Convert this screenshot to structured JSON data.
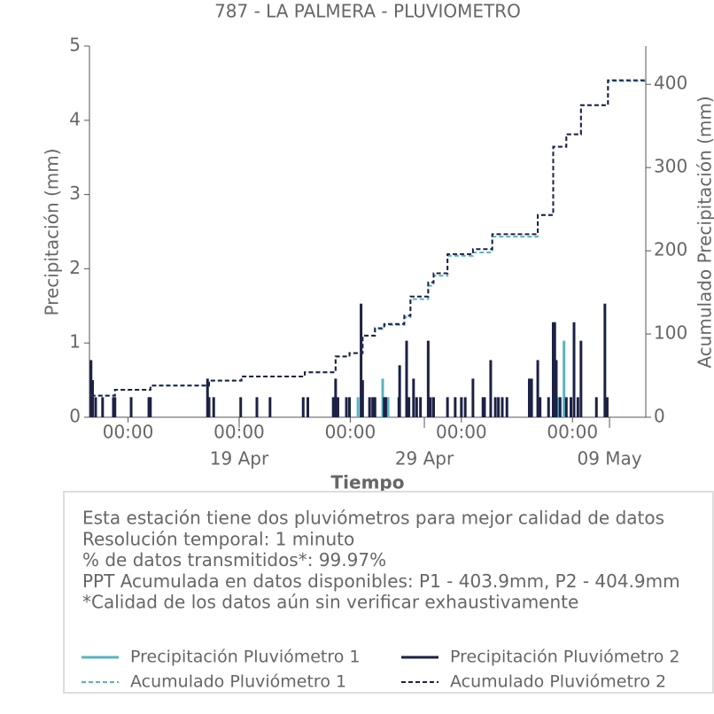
{
  "chart_data": {
    "type": "spike",
    "title": "787 - LA PALMERA - PLUVIOMETRO",
    "xlabel": "Tiempo",
    "ylabel": "Precipitación (mm)",
    "y2label": "Acumulado Precipitación (mm)",
    "xlim": [
      "04-10 22:00",
      "05-10 23:00"
    ],
    "xticks": [
      {
        "value": "04-13 00:00",
        "label": "00:00"
      },
      {
        "value": "04-19 00:00",
        "label": "00:00"
      },
      {
        "value": "04-25 00:00",
        "label": "00:00"
      },
      {
        "value": "05-01 00:00",
        "label": "00:00"
      },
      {
        "value": "05-07 00:00",
        "label": "00:00"
      }
    ],
    "xticks_major": [
      {
        "value": "04-19 00:00",
        "label": "19 Apr"
      },
      {
        "value": "04-29 00:00",
        "label": "29 Apr"
      },
      {
        "value": "05-09 00:00",
        "label": "09 May"
      }
    ],
    "ylim": [
      0,
      5
    ],
    "yticks": [
      0,
      1,
      2,
      3,
      4,
      5
    ],
    "y2lim": [
      0,
      446
    ],
    "y2ticks": [
      0,
      100,
      200,
      300,
      400
    ],
    "legend": "bottom",
    "series": [
      {
        "name": "Precipitación Pluviómetro 1",
        "color": "#5ab4c0",
        "linestyle": "solid",
        "x": [
          "04-24 02:00",
          "04-25 10:00",
          "04-26 18:00",
          "04-27 01:00",
          "05-06 05:00",
          "05-06 13:00"
        ],
        "values": [
          0.27,
          0.27,
          0.52,
          0.27,
          0.27,
          1.03
        ]
      },
      {
        "name": "Acumulado Pluviómetro 1",
        "color": "#5ab4c0",
        "linestyle": "dashed",
        "axis": "y2",
        "x": [
          "04-11 00:00",
          "04-12 07:00",
          "04-14 05:00",
          "04-17 09:00",
          "04-19 03:00",
          "04-22 13:00",
          "04-24 05:00",
          "04-24 23:00",
          "04-25 16:00",
          "04-26 08:00",
          "04-26 20:00",
          "04-27 22:00",
          "04-28 06:00",
          "04-29 05:00",
          "04-29 12:00",
          "04-30 06:00",
          "05-01 15:00",
          "05-02 16:00",
          "05-05 03:00",
          "05-05 23:00",
          "05-06 16:00",
          "05-07 11:00",
          "05-08 22:00",
          "05-10 23:00"
        ],
        "values": [
          26,
          33,
          38,
          44,
          49,
          54,
          73,
          77,
          98,
          106,
          111,
          120,
          142,
          158,
          170,
          194,
          198,
          217,
          243,
          325,
          340,
          375,
          403.9,
          403.9
        ]
      },
      {
        "name": "Precipitación Pluviómetro 2",
        "color": "#1c2145",
        "linestyle": "solid",
        "x": [
          "04-11 00:00",
          "04-11 02:00",
          "04-11 06:00",
          "04-11 15:00",
          "04-12 05:00",
          "04-12 07:00",
          "04-13 04:00",
          "04-14 03:00",
          "04-14 05:00",
          "04-17 07:00",
          "04-17 09:00",
          "04-17 15:00",
          "04-19 02:00",
          "04-19 23:00",
          "04-20 16:00",
          "04-22 11:00",
          "04-22 17:00",
          "04-24 02:00",
          "04-24 05:00",
          "04-24 08:00",
          "04-24 19:00",
          "04-24 23:00",
          "04-25 14:00",
          "04-25 16:00",
          "04-26 01:00",
          "04-26 05:00",
          "04-26 08:00",
          "04-26 20:00",
          "04-26 22:00",
          "04-27 15:00",
          "04-27 16:00",
          "04-28 01:00",
          "04-28 04:00",
          "04-28 10:00",
          "04-28 14:00",
          "04-28 19:00",
          "04-29 05:00",
          "04-29 08:00",
          "04-29 12:00",
          "04-30 06:00",
          "04-30 16:00",
          "05-01 00:00",
          "05-01 05:00",
          "05-01 15:00",
          "05-02 04:00",
          "05-02 06:00",
          "05-02 14:00",
          "05-02 20:00",
          "05-03 00:00",
          "05-03 05:00",
          "05-03 11:00",
          "05-04 16:00",
          "05-04 19:00",
          "05-05 03:00",
          "05-05 06:00",
          "05-05 17:00",
          "05-05 23:00",
          "05-06 01:00",
          "05-06 03:00",
          "05-06 08:00",
          "05-06 16:00",
          "05-06 22:00",
          "05-07 02:00",
          "05-07 07:00",
          "05-07 11:00",
          "05-08 07:00",
          "05-08 18:00",
          "05-08 21:00"
        ],
        "values": [
          0.77,
          0.5,
          0.27,
          0.27,
          0.27,
          0.27,
          0.27,
          0.27,
          0.27,
          0.52,
          0.27,
          0.27,
          0.27,
          0.27,
          0.27,
          0.27,
          0.27,
          0.27,
          0.52,
          0.27,
          0.27,
          0.27,
          1.53,
          0.5,
          0.27,
          0.27,
          0.27,
          0.27,
          0.27,
          0.27,
          0.7,
          1.03,
          0.27,
          0.52,
          0.27,
          0.27,
          1.03,
          0.27,
          0.27,
          0.27,
          0.27,
          0.27,
          0.27,
          0.52,
          0.27,
          0.27,
          0.77,
          0.27,
          0.27,
          0.27,
          0.27,
          0.52,
          0.52,
          0.77,
          0.27,
          0.27,
          1.28,
          1.28,
          0.77,
          0.27,
          0.27,
          0.27,
          1.28,
          0.27,
          1.03,
          0.27,
          1.53,
          0.27
        ]
      },
      {
        "name": "Acumulado Pluviómetro 2",
        "color": "#1c2145",
        "linestyle": "dashed",
        "axis": "y2",
        "x": [
          "04-11 00:00",
          "04-12 07:00",
          "04-14 05:00",
          "04-17 09:00",
          "04-19 03:00",
          "04-22 13:00",
          "04-24 05:00",
          "04-24 23:00",
          "04-25 16:00",
          "04-26 08:00",
          "04-26 20:00",
          "04-27 22:00",
          "04-28 06:00",
          "04-29 05:00",
          "04-29 12:00",
          "04-30 06:00",
          "05-01 15:00",
          "05-02 16:00",
          "05-05 03:00",
          "05-05 23:00",
          "05-06 16:00",
          "05-07 11:00",
          "05-08 22:00",
          "05-10 23:00"
        ],
        "values": [
          26,
          33,
          38,
          44,
          49,
          54,
          73,
          77,
          98,
          107,
          112,
          122,
          145,
          162,
          173,
          196,
          202,
          220,
          243,
          325,
          340,
          375,
          404.9,
          404.9
        ]
      }
    ],
    "annotation": [
      "Esta estación tiene dos pluviómetros para mejor calidad de datos",
      "Resolución temporal: 1 minuto",
      "% de datos transmitidos*: 99.97%",
      "PPT Acumulada en datos disponibles: P1 - 403.9mm, P2 - 404.9mm",
      "*Calidad de los datos aún sin verificar exhaustivamente"
    ]
  }
}
